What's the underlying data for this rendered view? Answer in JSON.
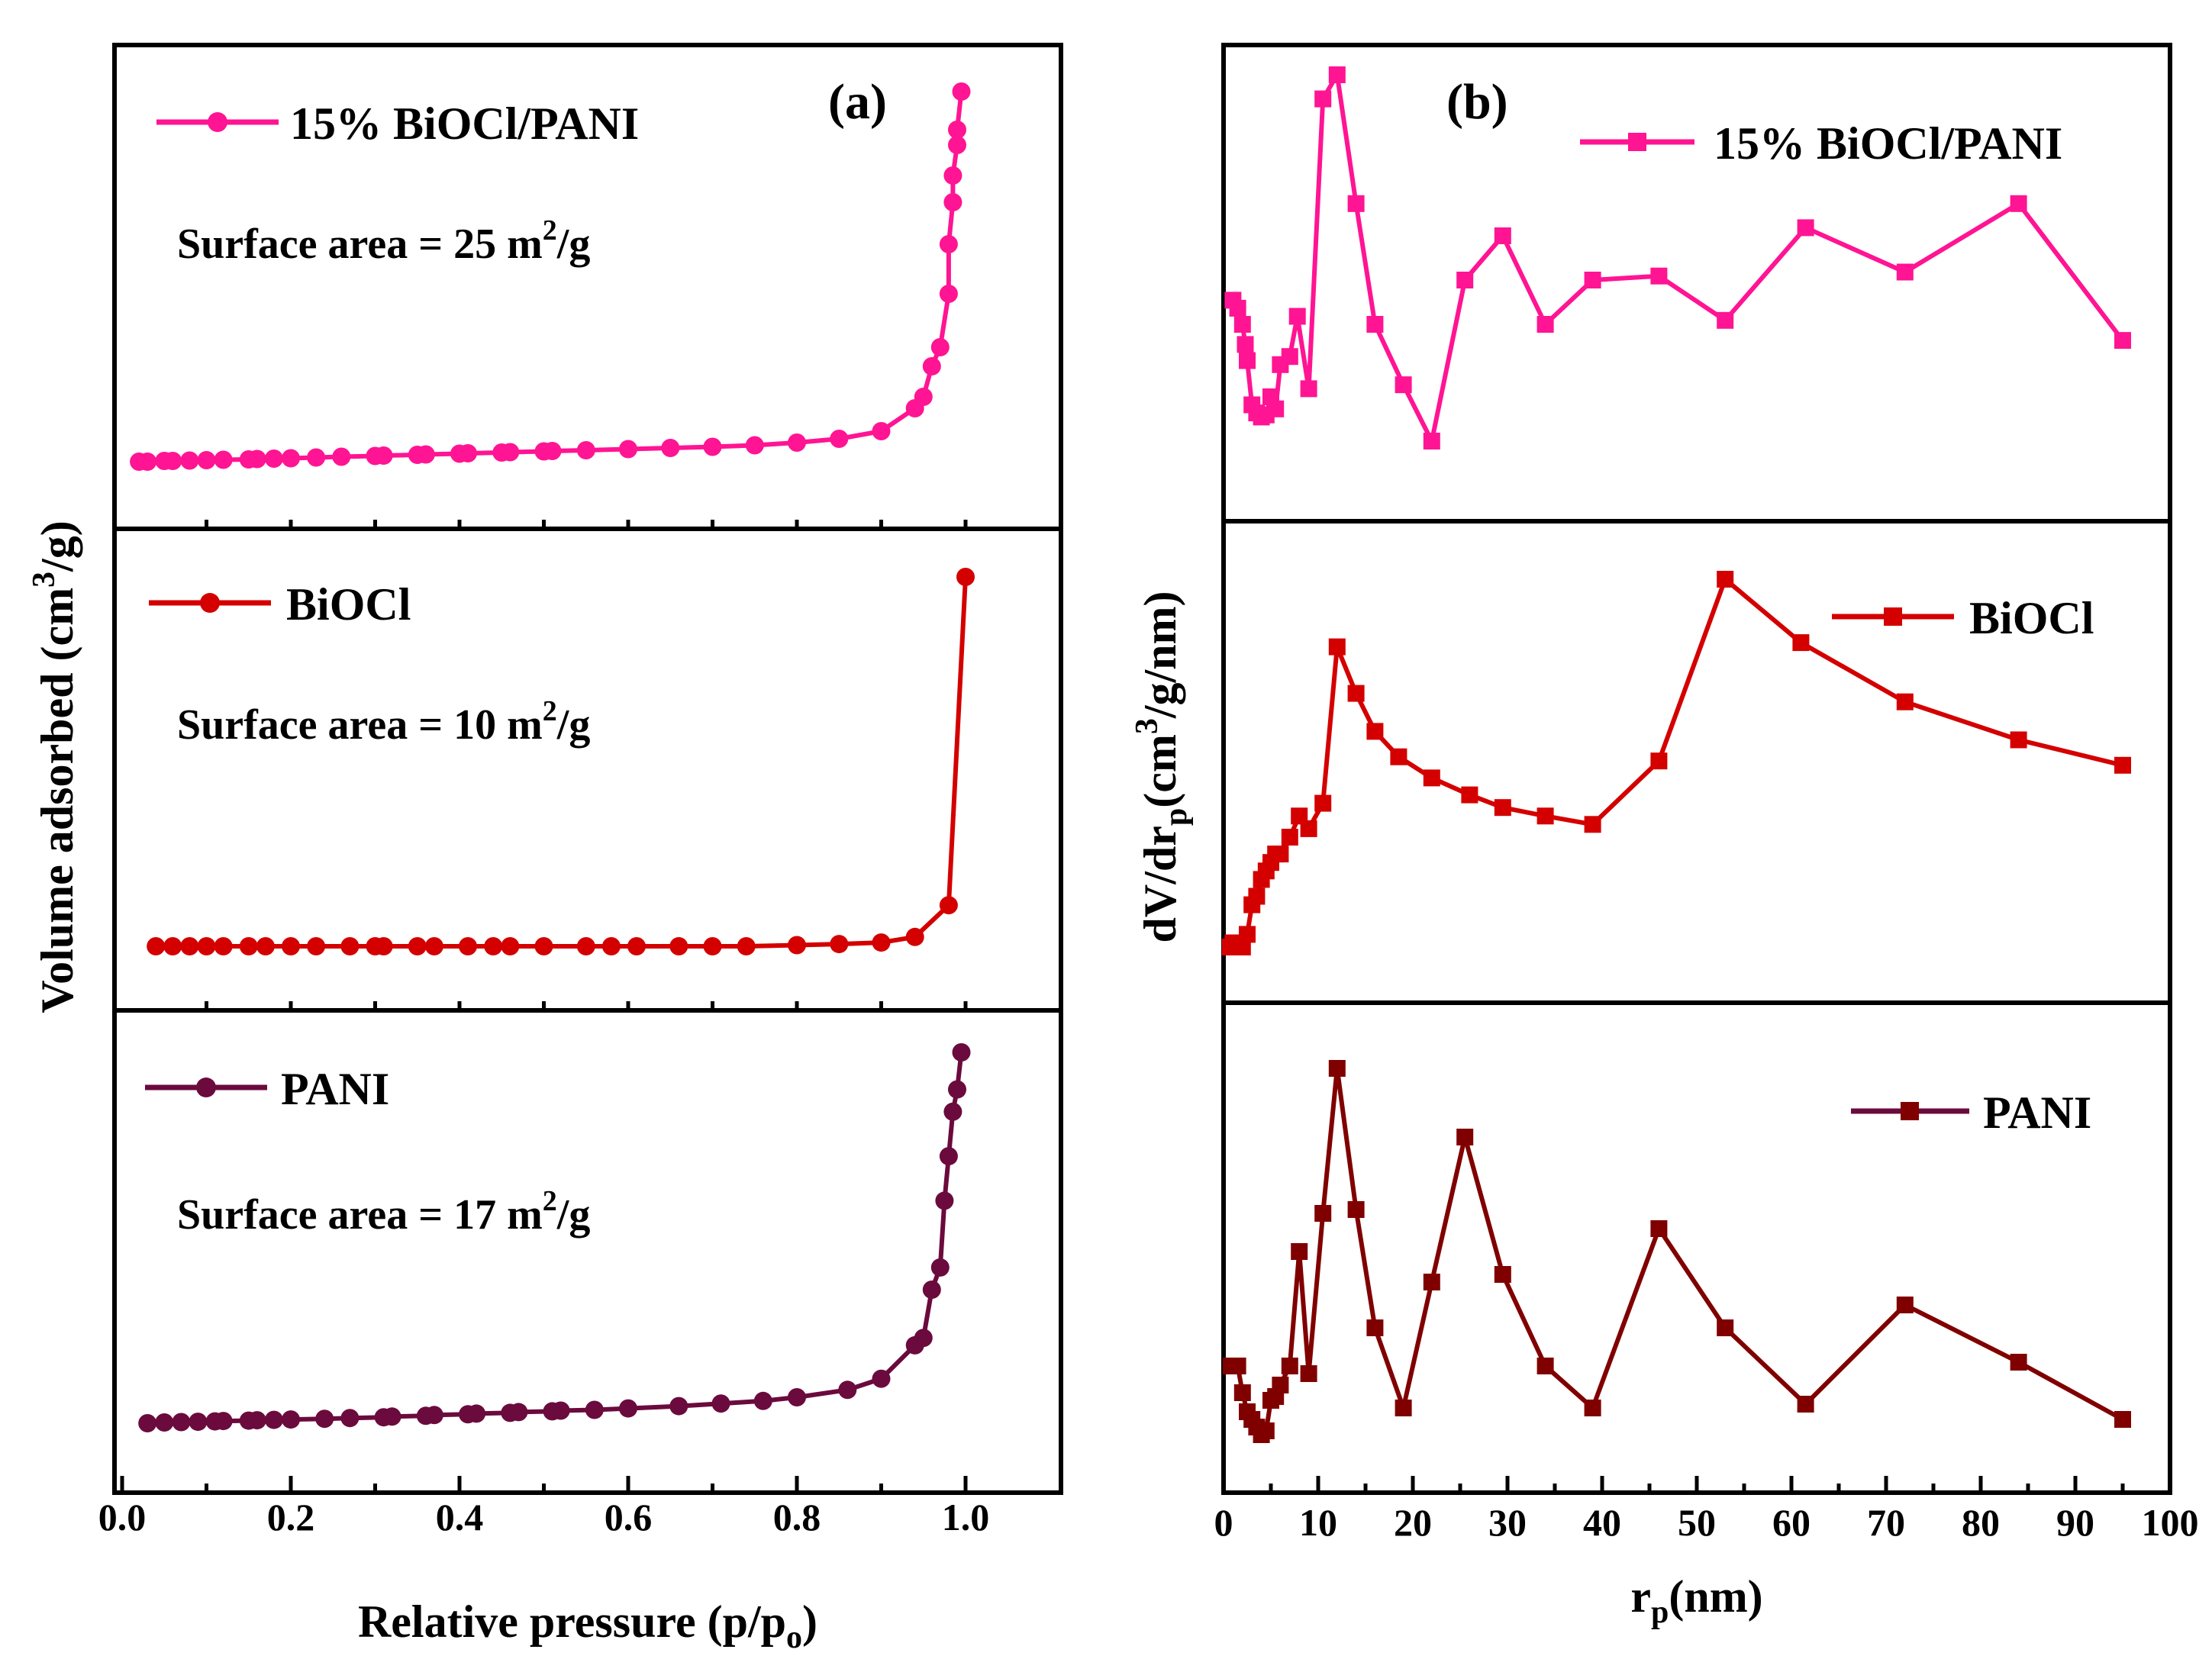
{
  "chart_data": [
    {
      "type": "line",
      "panel_label": "(a)",
      "xlabel_main": "Relative pressure (p/p",
      "xlabel_sub": "o",
      "xlabel_end": ")",
      "ylabel_main": "Volume adsorbed (cm",
      "ylabel_sup": "3",
      "ylabel_end": "/g)",
      "xlim": [
        0.0,
        1.1
      ],
      "xticks": [
        "0.0",
        "0.2",
        "0.4",
        "0.6",
        "0.8",
        "1.0"
      ],
      "series": [
        {
          "name": "15% BiOCl/PANI",
          "color": "#ff1493",
          "marker": "circle",
          "surface_area_prefix": "Surface area = 25 m",
          "surface_area_sup": "2",
          "surface_area_suffix": "/g",
          "x": [
            0.02,
            0.03,
            0.05,
            0.06,
            0.08,
            0.1,
            0.12,
            0.15,
            0.16,
            0.18,
            0.2,
            0.23,
            0.26,
            0.3,
            0.31,
            0.35,
            0.36,
            0.4,
            0.41,
            0.45,
            0.46,
            0.5,
            0.51,
            0.55,
            0.6,
            0.65,
            0.7,
            0.75,
            0.8,
            0.85,
            0.9,
            0.94,
            0.95,
            0.96,
            0.97,
            0.98,
            0.98,
            0.985,
            0.985,
            0.99,
            0.99,
            0.995
          ],
          "y": [
            3.0,
            3.0,
            3.2,
            3.2,
            3.3,
            3.4,
            3.5,
            3.6,
            3.7,
            3.8,
            3.9,
            4.1,
            4.3,
            4.5,
            4.6,
            4.8,
            4.9,
            5.1,
            5.2,
            5.4,
            5.5,
            5.7,
            5.8,
            6.0,
            6.3,
            6.6,
            6.9,
            7.3,
            8.0,
            9.0,
            11.0,
            17.0,
            20.0,
            28.0,
            33.0,
            47.0,
            60.0,
            71.0,
            78.0,
            86.0,
            90.0,
            100.0
          ]
        },
        {
          "name": "BiOCl",
          "color": "#d40000",
          "marker": "circle",
          "surface_area_prefix": "Surface area = 10 m",
          "surface_area_sup": "2",
          "surface_area_suffix": "/g",
          "x": [
            0.04,
            0.06,
            0.08,
            0.1,
            0.12,
            0.15,
            0.17,
            0.2,
            0.23,
            0.27,
            0.3,
            0.31,
            0.35,
            0.37,
            0.41,
            0.44,
            0.46,
            0.5,
            0.55,
            0.58,
            0.61,
            0.66,
            0.7,
            0.74,
            0.8,
            0.85,
            0.9,
            0.94,
            0.98,
            1.0
          ],
          "y": [
            1.0,
            1.0,
            1.0,
            1.0,
            1.0,
            1.0,
            1.0,
            1.0,
            1.0,
            1.0,
            1.0,
            1.0,
            1.0,
            1.0,
            1.0,
            1.0,
            1.0,
            1.0,
            1.0,
            1.0,
            1.0,
            1.0,
            1.0,
            1.0,
            1.3,
            1.6,
            2.0,
            3.5,
            12.0,
            100.0
          ]
        },
        {
          "name": "PANI",
          "color": "#6b0a3d",
          "marker": "circle",
          "surface_area_prefix": "Surface area = 17 m",
          "surface_area_sup": "2",
          "surface_area_suffix": "/g",
          "x": [
            0.03,
            0.05,
            0.07,
            0.09,
            0.11,
            0.12,
            0.15,
            0.16,
            0.18,
            0.2,
            0.24,
            0.27,
            0.31,
            0.32,
            0.36,
            0.37,
            0.41,
            0.42,
            0.46,
            0.47,
            0.51,
            0.52,
            0.56,
            0.6,
            0.66,
            0.71,
            0.76,
            0.8,
            0.86,
            0.9,
            0.94,
            0.95,
            0.96,
            0.97,
            0.975,
            0.98,
            0.985,
            0.99,
            0.995
          ],
          "y": [
            0.0,
            0.2,
            0.3,
            0.4,
            0.5,
            0.6,
            0.7,
            0.8,
            0.9,
            1.0,
            1.2,
            1.4,
            1.6,
            1.8,
            2.0,
            2.2,
            2.4,
            2.6,
            2.8,
            3.0,
            3.2,
            3.4,
            3.6,
            4.0,
            4.6,
            5.3,
            6.0,
            7.0,
            9.0,
            12.0,
            21.0,
            23.0,
            36.0,
            42.0,
            60.0,
            72.0,
            84.0,
            90.0,
            100.0
          ]
        }
      ]
    },
    {
      "type": "line",
      "panel_label": "(b)",
      "xlabel_main": "r",
      "xlabel_sub": "p",
      "xlabel_end": "(nm)",
      "ylabel_a": "dV/dr",
      "ylabel_sub": "p",
      "ylabel_b": "(cm",
      "ylabel_sup": "3",
      "ylabel_c": "/g/nm)",
      "xlim": [
        0,
        100
      ],
      "xticks": [
        "0",
        "10",
        "20",
        "30",
        "40",
        "50",
        "60",
        "70",
        "80",
        "90",
        "100"
      ],
      "series": [
        {
          "name": "15% BiOCl/PANI",
          "color": "#ff1493",
          "marker": "square",
          "x": [
            1.0,
            1.5,
            2.0,
            2.3,
            2.5,
            3.0,
            3.5,
            4.0,
            4.5,
            5.0,
            5.5,
            6.0,
            7.0,
            7.8,
            9.0,
            10.5,
            12.0,
            14.0,
            16.0,
            19.0,
            22.0,
            25.5,
            29.5,
            34.0,
            39.0,
            46.0,
            53.0,
            61.5,
            72.0,
            84.0,
            95.0
          ],
          "y": [
            44,
            42,
            38,
            33,
            29,
            18,
            16,
            15,
            15.5,
            20,
            17,
            28,
            30,
            40,
            22,
            94,
            100,
            68,
            38,
            23,
            9,
            49,
            60,
            38,
            49,
            50,
            39,
            62,
            51,
            68,
            34
          ]
        },
        {
          "name": "BiOCl",
          "color": "#d40000",
          "marker": "square",
          "x": [
            0.7,
            1.0,
            1.5,
            2.0,
            2.5,
            3.0,
            3.5,
            4.0,
            4.5,
            5.0,
            5.5,
            6.0,
            7.0,
            8.0,
            9.0,
            10.5,
            12.0,
            14.0,
            16.0,
            18.5,
            22.0,
            26.0,
            29.5,
            34.0,
            39.0,
            46.0,
            53.0,
            61.0,
            72.0,
            84.0,
            95.0
          ],
          "y": [
            0,
            1,
            1,
            0,
            3,
            10,
            12,
            16,
            18,
            20,
            22,
            22,
            26,
            31,
            28,
            34,
            71,
            60,
            51,
            45,
            40,
            36,
            33,
            31,
            29,
            44,
            87,
            72,
            58,
            49,
            43
          ]
        },
        {
          "name": "PANI",
          "color": "#800000",
          "marker": "square",
          "x": [
            0.8,
            1.0,
            1.5,
            2.0,
            2.5,
            3.0,
            3.5,
            4.0,
            4.5,
            5.0,
            5.5,
            6.0,
            7.0,
            8.0,
            9.0,
            10.5,
            12.0,
            14.0,
            16.0,
            19.0,
            22.0,
            25.5,
            29.5,
            34.0,
            39.0,
            46.0,
            53.0,
            61.5,
            72.0,
            84.0,
            95.0
          ],
          "y": [
            22,
            22,
            22,
            15,
            10,
            8,
            6,
            4,
            5,
            13,
            14,
            17,
            22,
            52,
            20,
            62,
            100,
            63,
            32,
            11,
            44,
            82,
            46,
            22,
            11,
            58,
            32,
            12,
            38,
            23,
            8
          ]
        }
      ]
    }
  ]
}
